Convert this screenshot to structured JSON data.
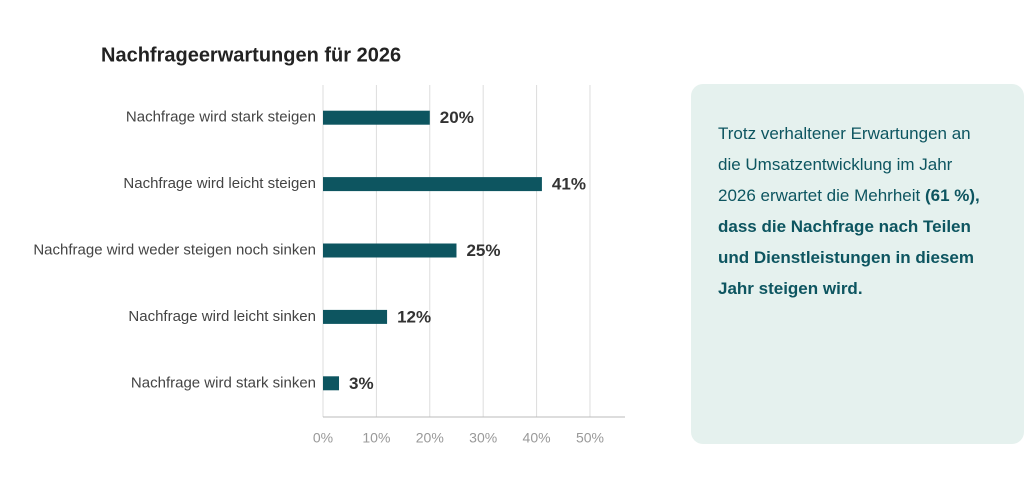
{
  "chart_data": {
    "type": "bar",
    "orientation": "horizontal",
    "title": "Nachfrageerwartungen für 2026",
    "categories": [
      "Nachfrage wird stark steigen",
      "Nachfrage wird leicht steigen",
      "Nachfrage wird weder steigen noch sinken",
      "Nachfrage wird leicht sinken",
      "Nachfrage wird stark sinken"
    ],
    "values": [
      20,
      41,
      25,
      12,
      3
    ],
    "value_labels": [
      "20%",
      "41%",
      "25%",
      "12%",
      "3%"
    ],
    "color": "#0d5560",
    "xlim": [
      0,
      56
    ],
    "xticks": [
      {
        "value": 0,
        "label": "0%"
      },
      {
        "value": 10,
        "label": "10%"
      },
      {
        "value": 20,
        "label": "20%"
      },
      {
        "value": 30,
        "label": "30%"
      },
      {
        "value": 40,
        "label": "40%"
      },
      {
        "value": 50,
        "label": "50%"
      }
    ],
    "grid": true
  },
  "callout": {
    "text": "Trotz verhaltener Erwartungen an die Umsatzentwicklung im Jahr 2026 erwartet die Mehrheit",
    "bold": "(61 %), dass die Nachfrage nach Teilen und Dienstleistungen in diesem Jahr steigen wird."
  }
}
